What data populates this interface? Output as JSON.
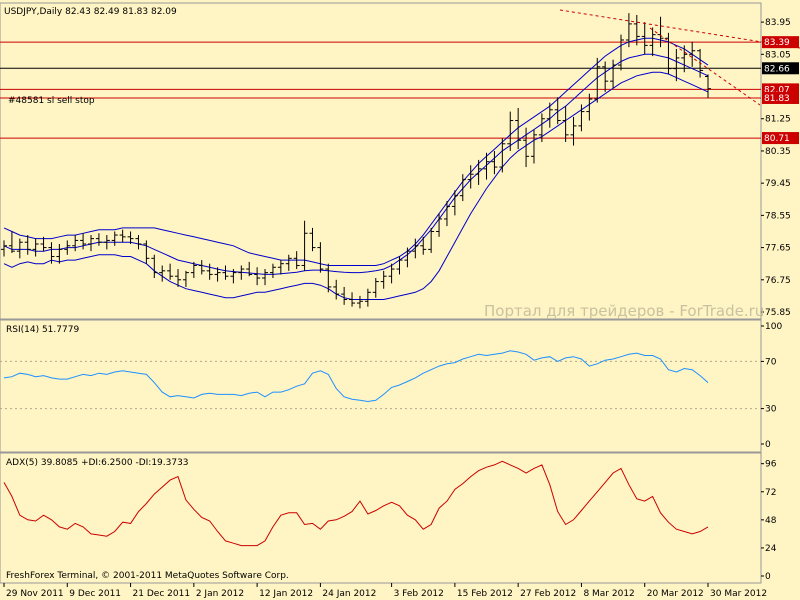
{
  "header": {
    "main_title": "USDJPY,Daily  82.43 82.49 81.83 82.09",
    "rsi_title": "RSI(14) 51.7779",
    "adx_title": "ADX(5) 39.8085 +DI:6.2500 -DI:19.3733",
    "order_label": "#48581 sl sell stop"
  },
  "watermark": "Портал для трейдеров - ForTrade.ru",
  "footer": "FreshForex Terminal, © 2001-2011 MetaQuotes Software Corp.",
  "colors": {
    "background": "#fff4c4",
    "candles": "#000000",
    "bands": "#0000cc",
    "rsi": "#1e90ff",
    "adx": "#cc0000",
    "hlines": "#cc0000",
    "trendline": "#cc0000"
  },
  "chart_data": [
    {
      "type": "candlestick",
      "symbol": "USDJPY",
      "timeframe": "Daily",
      "ohlc_last": {
        "open": 82.43,
        "high": 82.49,
        "low": 81.83,
        "close": 82.09
      },
      "ylim": [
        75.85,
        84.4
      ],
      "y_ticks": [
        {
          "v": 83.95,
          "label": "83.95"
        },
        {
          "v": 83.05,
          "label": "83.05"
        },
        {
          "v": 81.25,
          "label": "81.25"
        },
        {
          "v": 80.35,
          "label": "80.35"
        },
        {
          "v": 79.45,
          "label": "79.45"
        },
        {
          "v": 78.55,
          "label": "78.55"
        },
        {
          "v": 77.65,
          "label": "77.65"
        },
        {
          "v": 76.75,
          "label": "76.75"
        },
        {
          "v": 75.85,
          "label": "75.85"
        }
      ],
      "price_tags": [
        {
          "v": 83.39,
          "label": "83.39",
          "fill": "#cc0000",
          "text": "#ffffff"
        },
        {
          "v": 82.66,
          "label": "82.66",
          "fill": "#000000",
          "text": "#ffffff"
        },
        {
          "v": 82.07,
          "label": "82.07",
          "fill": "#cc0000",
          "text": "#ffffff"
        },
        {
          "v": 81.83,
          "label": "81.83",
          "fill": "#cc0000",
          "text": "#ffffff"
        },
        {
          "v": 80.71,
          "label": "80.71",
          "fill": "#cc0000",
          "text": "#ffffff"
        }
      ],
      "hlines": [
        83.39,
        82.66,
        82.07,
        81.83,
        80.71
      ],
      "x_labels": [
        "29 Nov 2011",
        "9 Dec 2011",
        "21 Dec 2011",
        "2 Jan 2012",
        "12 Jan 2012",
        "24 Jan 2012",
        "3 Feb 2012",
        "15 Feb 2012",
        "27 Feb 2012",
        "8 Mar 2012",
        "20 Mar 2012",
        "30 Mar 2012"
      ],
      "candles": [
        [
          77.6,
          77.85,
          77.4,
          77.7
        ],
        [
          77.7,
          78.1,
          77.5,
          77.55
        ],
        [
          77.55,
          77.9,
          77.35,
          77.8
        ],
        [
          77.8,
          78.0,
          77.45,
          77.6
        ],
        [
          77.6,
          77.9,
          77.4,
          77.75
        ],
        [
          77.75,
          77.95,
          77.55,
          77.65
        ],
        [
          77.65,
          77.8,
          77.2,
          77.4
        ],
        [
          77.4,
          77.75,
          77.2,
          77.6
        ],
        [
          77.6,
          77.85,
          77.45,
          77.7
        ],
        [
          77.7,
          78.0,
          77.55,
          77.85
        ],
        [
          77.85,
          78.05,
          77.6,
          77.75
        ],
        [
          77.75,
          78.0,
          77.55,
          77.9
        ],
        [
          77.9,
          78.05,
          77.7,
          77.8
        ],
        [
          77.8,
          78.0,
          77.6,
          77.85
        ],
        [
          77.85,
          78.1,
          77.7,
          78.0
        ],
        [
          78.0,
          78.15,
          77.8,
          77.95
        ],
        [
          77.95,
          78.1,
          77.75,
          77.9
        ],
        [
          77.9,
          78.0,
          77.6,
          77.75
        ],
        [
          77.75,
          77.85,
          77.2,
          77.35
        ],
        [
          77.35,
          77.45,
          76.8,
          76.95
        ],
        [
          76.95,
          77.15,
          76.7,
          77.0
        ],
        [
          77.0,
          77.2,
          76.75,
          76.85
        ],
        [
          76.85,
          77.05,
          76.55,
          76.75
        ],
        [
          76.75,
          77.0,
          76.55,
          76.95
        ],
        [
          76.95,
          77.25,
          76.8,
          77.15
        ],
        [
          77.15,
          77.3,
          76.9,
          77.0
        ],
        [
          77.0,
          77.2,
          76.75,
          76.9
        ],
        [
          76.9,
          77.1,
          76.7,
          76.95
        ],
        [
          76.95,
          77.15,
          76.75,
          76.85
        ],
        [
          76.85,
          77.05,
          76.65,
          76.95
        ],
        [
          76.95,
          77.15,
          76.75,
          77.05
        ],
        [
          77.05,
          77.25,
          76.85,
          76.9
        ],
        [
          76.9,
          77.1,
          76.6,
          76.8
        ],
        [
          76.8,
          77.05,
          76.6,
          76.95
        ],
        [
          76.95,
          77.2,
          76.8,
          77.1
        ],
        [
          77.1,
          77.3,
          76.9,
          77.2
        ],
        [
          77.2,
          77.45,
          77.0,
          77.35
        ],
        [
          77.35,
          77.55,
          77.05,
          77.15
        ],
        [
          77.15,
          78.4,
          77.0,
          78.05
        ],
        [
          78.05,
          78.2,
          77.55,
          77.65
        ],
        [
          77.65,
          77.8,
          76.95,
          77.05
        ],
        [
          77.05,
          77.2,
          76.4,
          76.55
        ],
        [
          76.55,
          76.75,
          76.2,
          76.35
        ],
        [
          76.35,
          76.55,
          76.05,
          76.2
        ],
        [
          76.2,
          76.4,
          76.0,
          76.1
        ],
        [
          76.1,
          76.3,
          75.95,
          76.15
        ],
        [
          76.15,
          76.5,
          76.0,
          76.4
        ],
        [
          76.4,
          76.8,
          76.25,
          76.7
        ],
        [
          76.7,
          77.0,
          76.5,
          76.85
        ],
        [
          76.85,
          77.2,
          76.65,
          77.05
        ],
        [
          77.05,
          77.4,
          76.9,
          77.3
        ],
        [
          77.3,
          77.65,
          77.1,
          77.55
        ],
        [
          77.55,
          77.9,
          77.35,
          77.7
        ],
        [
          77.7,
          77.95,
          77.45,
          77.6
        ],
        [
          77.6,
          78.2,
          77.5,
          78.1
        ],
        [
          78.1,
          78.6,
          77.95,
          78.45
        ],
        [
          78.45,
          78.95,
          78.25,
          78.8
        ],
        [
          78.8,
          79.25,
          78.55,
          79.1
        ],
        [
          79.1,
          79.7,
          78.95,
          79.55
        ],
        [
          79.55,
          79.95,
          79.3,
          79.7
        ],
        [
          79.7,
          80.1,
          79.4,
          79.85
        ],
        [
          79.85,
          80.3,
          79.55,
          80.05
        ],
        [
          80.05,
          80.35,
          79.7,
          79.9
        ],
        [
          79.9,
          80.7,
          79.75,
          80.55
        ],
        [
          80.55,
          81.45,
          80.35,
          81.2
        ],
        [
          81.2,
          81.55,
          80.4,
          80.65
        ],
        [
          80.65,
          81.0,
          79.9,
          80.2
        ],
        [
          80.2,
          80.95,
          80.0,
          80.8
        ],
        [
          80.8,
          81.4,
          80.6,
          81.25
        ],
        [
          81.25,
          81.7,
          81.0,
          81.5
        ],
        [
          81.5,
          81.85,
          81.1,
          81.2
        ],
        [
          81.2,
          81.6,
          80.6,
          80.8
        ],
        [
          80.8,
          81.3,
          80.5,
          81.05
        ],
        [
          81.05,
          81.65,
          80.9,
          81.45
        ],
        [
          81.45,
          81.95,
          81.2,
          81.8
        ],
        [
          81.8,
          82.95,
          81.7,
          82.7
        ],
        [
          82.7,
          82.85,
          82.0,
          82.3
        ],
        [
          82.3,
          82.9,
          82.1,
          82.75
        ],
        [
          82.75,
          83.6,
          82.6,
          83.45
        ],
        [
          83.45,
          84.2,
          83.25,
          83.9
        ],
        [
          83.9,
          84.15,
          83.3,
          83.55
        ],
        [
          83.55,
          83.95,
          83.05,
          83.3
        ],
        [
          83.3,
          83.8,
          83.0,
          83.6
        ],
        [
          83.6,
          84.1,
          83.25,
          83.5
        ],
        [
          83.5,
          83.65,
          82.5,
          82.65
        ],
        [
          82.65,
          83.2,
          82.3,
          82.95
        ],
        [
          82.95,
          83.3,
          82.55,
          83.05
        ],
        [
          83.05,
          83.4,
          82.7,
          83.15
        ],
        [
          83.15,
          83.2,
          82.4,
          82.6
        ],
        [
          82.43,
          82.49,
          81.83,
          82.09
        ]
      ],
      "series": [
        {
          "name": "upper",
          "values": [
            78.2,
            78.1,
            78.0,
            77.95,
            77.9,
            77.9,
            77.9,
            77.95,
            78.0,
            78.0,
            78.05,
            78.1,
            78.15,
            78.15,
            78.15,
            78.2,
            78.2,
            78.2,
            78.2,
            78.2,
            78.15,
            78.1,
            78.05,
            78.0,
            77.95,
            77.9,
            77.85,
            77.8,
            77.75,
            77.7,
            77.6,
            77.5,
            77.45,
            77.4,
            77.35,
            77.3,
            77.3,
            77.3,
            77.3,
            77.25,
            77.2,
            77.15,
            77.15,
            77.15,
            77.15,
            77.15,
            77.15,
            77.15,
            77.2,
            77.3,
            77.4,
            77.55,
            77.75,
            78.0,
            78.3,
            78.6,
            78.9,
            79.2,
            79.5,
            79.75,
            80.0,
            80.2,
            80.4,
            80.6,
            80.8,
            81.0,
            81.15,
            81.3,
            81.45,
            81.6,
            81.8,
            82.0,
            82.2,
            82.4,
            82.6,
            82.8,
            83.0,
            83.15,
            83.3,
            83.4,
            83.45,
            83.5,
            83.5,
            83.45,
            83.4,
            83.3,
            83.2,
            83.05,
            82.9,
            82.75
          ]
        },
        {
          "name": "middle",
          "values": [
            77.7,
            77.6,
            77.6,
            77.6,
            77.55,
            77.55,
            77.6,
            77.6,
            77.65,
            77.65,
            77.7,
            77.75,
            77.8,
            77.8,
            77.8,
            77.8,
            77.8,
            77.75,
            77.7,
            77.6,
            77.5,
            77.4,
            77.3,
            77.25,
            77.2,
            77.15,
            77.1,
            77.05,
            77.0,
            76.98,
            76.96,
            76.94,
            76.92,
            76.9,
            76.9,
            76.92,
            76.94,
            76.96,
            77.0,
            77.02,
            77.02,
            77.0,
            76.98,
            76.96,
            76.95,
            76.95,
            76.97,
            77.0,
            77.05,
            77.15,
            77.3,
            77.45,
            77.65,
            77.9,
            78.15,
            78.45,
            78.75,
            79.05,
            79.3,
            79.55,
            79.75,
            79.95,
            80.15,
            80.35,
            80.5,
            80.65,
            80.8,
            80.95,
            81.1,
            81.25,
            81.45,
            81.6,
            81.8,
            82.0,
            82.2,
            82.4,
            82.55,
            82.7,
            82.85,
            82.95,
            83.0,
            83.05,
            83.05,
            83.0,
            82.95,
            82.85,
            82.75,
            82.65,
            82.55,
            82.45
          ]
        },
        {
          "name": "lower",
          "values": [
            77.2,
            77.1,
            77.2,
            77.25,
            77.2,
            77.2,
            77.3,
            77.25,
            77.3,
            77.3,
            77.35,
            77.4,
            77.45,
            77.45,
            77.45,
            77.4,
            77.4,
            77.3,
            77.2,
            77.0,
            76.85,
            76.7,
            76.6,
            76.5,
            76.45,
            76.4,
            76.35,
            76.3,
            76.25,
            76.25,
            76.3,
            76.35,
            76.4,
            76.4,
            76.45,
            76.5,
            76.55,
            76.6,
            76.65,
            76.65,
            76.6,
            76.5,
            76.35,
            76.25,
            76.2,
            76.2,
            76.2,
            76.2,
            76.2,
            76.25,
            76.3,
            76.35,
            76.4,
            76.5,
            76.7,
            77.0,
            77.4,
            77.8,
            78.2,
            78.6,
            78.95,
            79.3,
            79.6,
            79.9,
            80.15,
            80.35,
            80.5,
            80.65,
            80.75,
            80.9,
            81.05,
            81.2,
            81.35,
            81.5,
            81.65,
            81.8,
            81.95,
            82.1,
            82.25,
            82.35,
            82.45,
            82.5,
            82.55,
            82.55,
            82.5,
            82.4,
            82.3,
            82.2,
            82.1,
            82.0
          ]
        }
      ]
    },
    {
      "type": "line",
      "name": "RSI(14)",
      "ylim": [
        0,
        100
      ],
      "y_ticks": [
        {
          "v": 100,
          "label": "100"
        },
        {
          "v": 70,
          "label": "70"
        },
        {
          "v": 30,
          "label": "30"
        },
        {
          "v": 0,
          "label": "0"
        }
      ],
      "levels": [
        70,
        30
      ],
      "values": [
        56,
        57,
        60,
        59,
        57,
        58,
        56,
        55,
        55,
        57,
        59,
        58,
        60,
        59,
        61,
        62,
        61,
        60,
        59,
        52,
        44,
        40,
        41,
        40,
        39,
        42,
        43,
        42,
        42,
        42,
        41,
        43,
        44,
        40,
        44,
        44,
        46,
        49,
        51,
        60,
        62,
        59,
        47,
        40,
        38,
        37,
        36,
        37,
        42,
        48,
        50,
        53,
        56,
        60,
        63,
        66,
        68,
        69,
        72,
        74,
        76,
        75,
        76,
        77,
        79,
        78,
        76,
        71,
        73,
        74,
        70,
        73,
        74,
        72,
        66,
        68,
        71,
        72,
        74,
        76,
        77,
        75,
        75,
        72,
        63,
        61,
        64,
        63,
        58,
        52
      ]
    },
    {
      "type": "line",
      "name": "ADX(5)",
      "ylim": [
        0,
        100
      ],
      "y_ticks": [
        {
          "v": 96,
          "label": "96"
        },
        {
          "v": 72,
          "label": "72"
        },
        {
          "v": 48,
          "label": "48"
        },
        {
          "v": 24,
          "label": "24"
        },
        {
          "v": 0,
          "label": "0"
        }
      ],
      "values": [
        80,
        68,
        52,
        48,
        47,
        52,
        48,
        42,
        40,
        45,
        42,
        36,
        35,
        34,
        38,
        46,
        45,
        55,
        62,
        70,
        76,
        82,
        85,
        65,
        57,
        50,
        47,
        38,
        30,
        28,
        26,
        26,
        26,
        30,
        42,
        52,
        54,
        54,
        44,
        45,
        40,
        47,
        48,
        51,
        55,
        64,
        53,
        56,
        60,
        63,
        60,
        52,
        48,
        40,
        44,
        58,
        64,
        74,
        79,
        85,
        90,
        93,
        95,
        98,
        95,
        92,
        88,
        92,
        95,
        78,
        55,
        44,
        48,
        56,
        64,
        72,
        80,
        88,
        92,
        78,
        66,
        64,
        68,
        54,
        46,
        40,
        38,
        36,
        38,
        42
      ]
    }
  ]
}
